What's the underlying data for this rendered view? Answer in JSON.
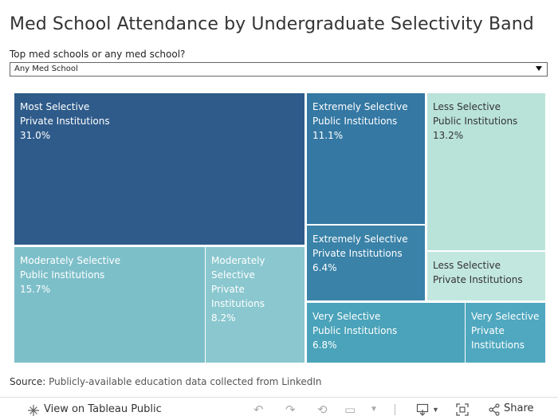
{
  "title": "Med School Attendance by Undergraduate Selectivity Band",
  "filter": {
    "label": "Top med schools or any med school?",
    "selected": "Any Med School"
  },
  "source": {
    "prefix": "Source:",
    "text": "Publicly-available education data collected from LinkedIn"
  },
  "toolbar": {
    "view_label": "View on Tableau Public",
    "share_label": "Share"
  },
  "chart_data": {
    "type": "treemap",
    "cells": [
      {
        "lines": [
          "Most Selective",
          "Private Institutions",
          "31.0%"
        ],
        "value": 31.0,
        "color": "#2e5b8a",
        "text_color": "#ffffff"
      },
      {
        "lines": [
          "Moderately Selective",
          "Public Institutions",
          "15.7%"
        ],
        "value": 15.7,
        "color": "#7dbfc9",
        "text_color": "#ffffff"
      },
      {
        "lines": [
          "Moderately",
          "Selective",
          "Private",
          "Institutions",
          "8.2%"
        ],
        "value": 8.2,
        "color": "#8ac7cf",
        "text_color": "#ffffff"
      },
      {
        "lines": [
          "Extremely Selective",
          "Public Institutions",
          "11.1%"
        ],
        "value": 11.1,
        "color": "#3478a3",
        "text_color": "#ffffff"
      },
      {
        "lines": [
          "Extremely Selective",
          "Private Institutions",
          "6.4%"
        ],
        "value": 6.4,
        "color": "#3a82a8",
        "text_color": "#ffffff"
      },
      {
        "lines": [
          "Less Selective",
          "Public Institutions",
          "13.2%"
        ],
        "value": 13.2,
        "color": "#b9e3d9",
        "text_color": "#333333"
      },
      {
        "lines": [
          "Less Selective",
          "Private Institutions"
        ],
        "value": null,
        "color": "#c2e7de",
        "text_color": "#333333"
      },
      {
        "lines": [
          "Very Selective",
          "Public Institutions",
          "6.8%"
        ],
        "value": 6.8,
        "color": "#4aa3ba",
        "text_color": "#ffffff"
      },
      {
        "lines": [
          "Very Selective",
          "Private",
          "Institutions"
        ],
        "value": null,
        "color": "#4fa8bf",
        "text_color": "#ffffff"
      }
    ]
  }
}
